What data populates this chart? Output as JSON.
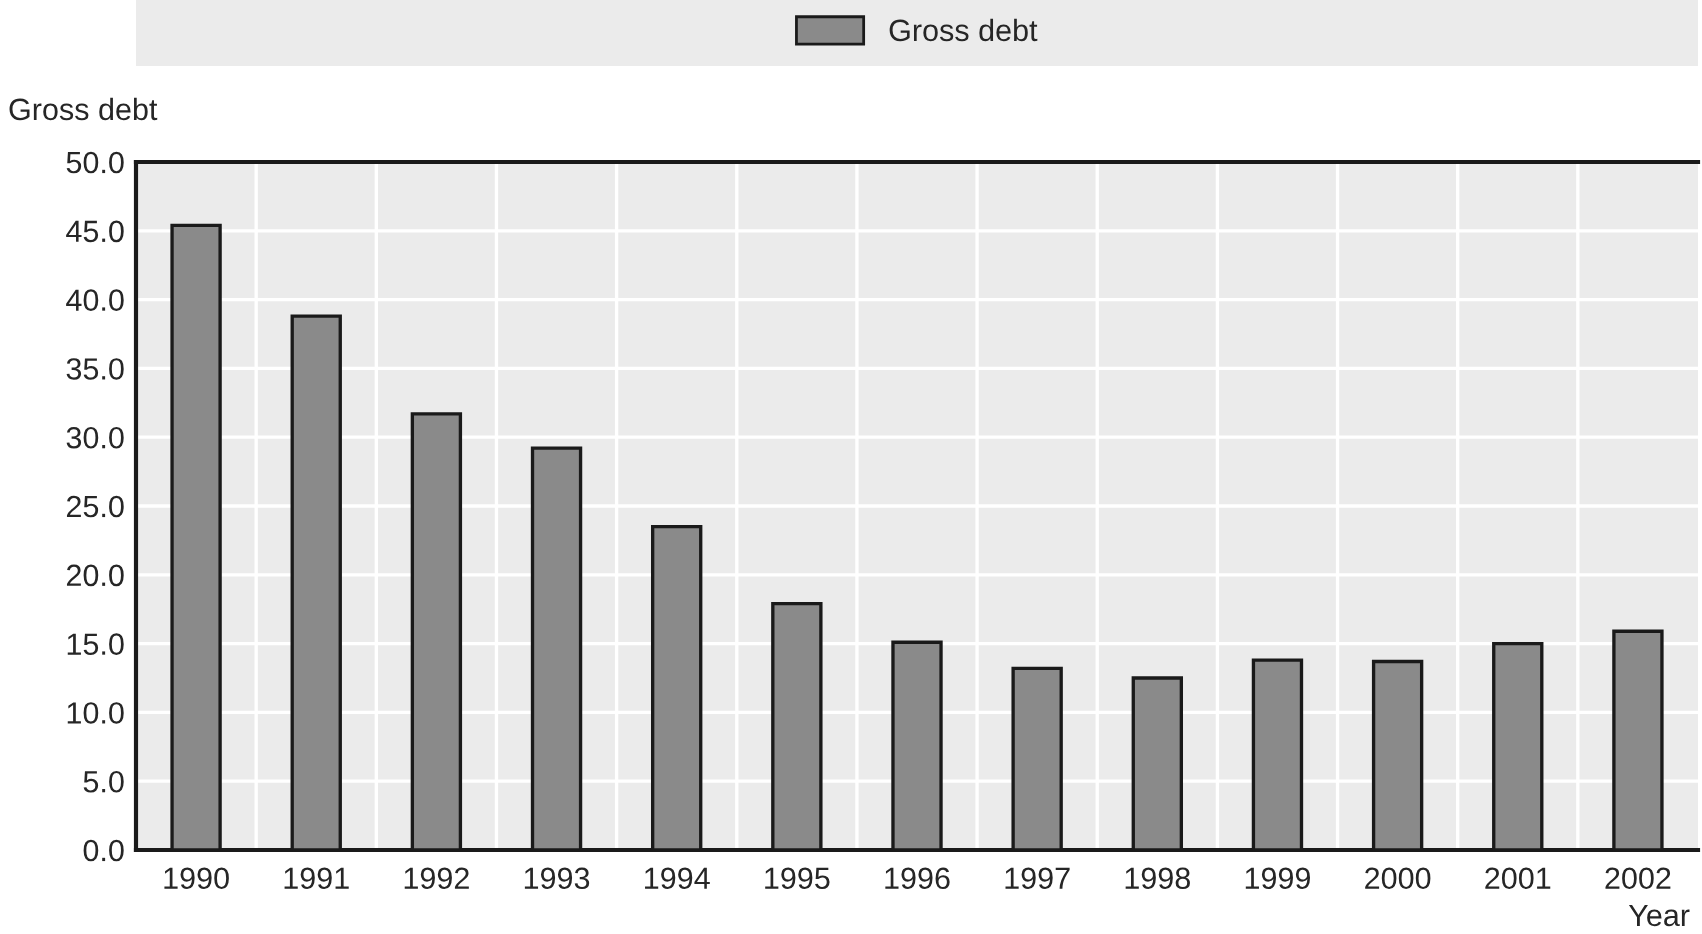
{
  "chart_data": {
    "type": "bar",
    "ylabel": "Gross debt",
    "xlabel": "Year",
    "categories": [
      "1990",
      "1991",
      "1992",
      "1993",
      "1994",
      "1995",
      "1996",
      "1997",
      "1998",
      "1999",
      "2000",
      "2001",
      "2002"
    ],
    "series": [
      {
        "name": "Gross debt",
        "color": "#8a8a8a",
        "values": [
          45.4,
          38.8,
          31.7,
          29.2,
          23.5,
          17.9,
          15.1,
          13.2,
          12.5,
          13.8,
          13.7,
          15.0,
          15.9
        ]
      }
    ],
    "ylim": [
      0,
      50
    ],
    "yticks": [
      {
        "value": 0,
        "label": "0.0"
      },
      {
        "value": 5,
        "label": "5.0"
      },
      {
        "value": 10,
        "label": "10.0"
      },
      {
        "value": 15,
        "label": "15.0"
      },
      {
        "value": 20,
        "label": "20.0"
      },
      {
        "value": 25,
        "label": "25.0"
      },
      {
        "value": 30,
        "label": "30.0"
      },
      {
        "value": 35,
        "label": "35.0"
      },
      {
        "value": 40,
        "label": "40.0"
      },
      {
        "value": 45,
        "label": "45.0"
      },
      {
        "value": 50,
        "label": "50.0"
      }
    ],
    "grid": true,
    "legend": "top"
  }
}
